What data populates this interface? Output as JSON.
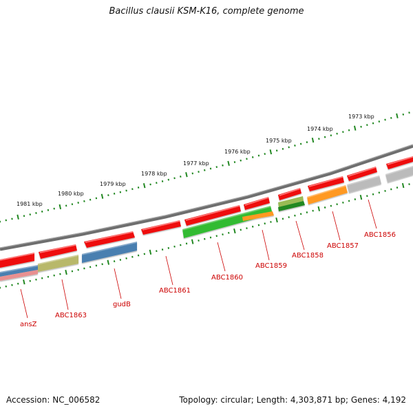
{
  "title": "Bacillus clausii KSM-K16, complete genome",
  "accession": "Accession: NC_006582",
  "summary": "Topology: circular; Length: 4,303,871 bp; Genes: 4,192",
  "kbp_labels": [
    "1981 kbp",
    "1980 kbp",
    "1979 kbp",
    "1978 kbp",
    "1977 kbp",
    "1976 kbp",
    "1975 kbp",
    "1974 kbp",
    "1973 kbp"
  ],
  "gene_labels": [
    "ansZ",
    "ABC1863",
    "gudB",
    "ABC1861",
    "ABC1860",
    "ABC1859",
    "ABC1858",
    "ABC1857",
    "ABC1856"
  ],
  "colors": {
    "cds_forward": "#ee1111",
    "backbone": "#7a7a7a",
    "tick": "#228822",
    "label": "#cc0000",
    "track_colors": [
      "#4a7fb0",
      "#e89090",
      "#b8b86a",
      "#4a7fb0",
      "#33bb33",
      "#ff9922",
      "#99bb55",
      "#228822",
      "#ff9922",
      "#bbbbbb",
      "#bbbbbb"
    ]
  }
}
